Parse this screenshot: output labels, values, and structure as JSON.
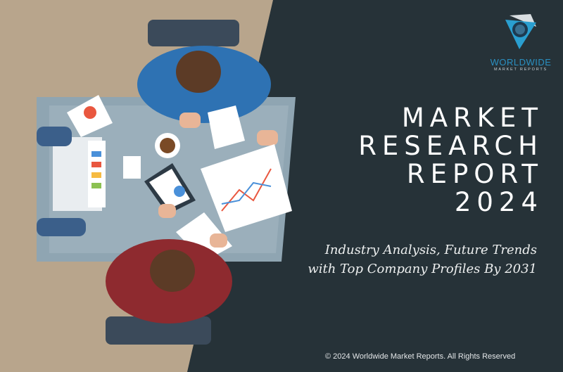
{
  "colors": {
    "background_left": "#b8a58c",
    "panel": "#263238",
    "accent": "#2a8fc0"
  },
  "logo": {
    "name": "WORLDWIDE",
    "tagline": "MARKET REPORTS",
    "icon": "globe-triangle-logo"
  },
  "title": {
    "lines": [
      "MARKET",
      "RESEARCH",
      "REPORT",
      "2024"
    ]
  },
  "subtitle": {
    "lines": [
      "Industry Analysis, Future Trends",
      "with Top Company Profiles By 2031"
    ]
  },
  "footer": {
    "copyright": "© 2024 Worldwide Market Reports. All Rights Reserved"
  },
  "illustration": {
    "description_icon": "office-meeting-illustration"
  }
}
